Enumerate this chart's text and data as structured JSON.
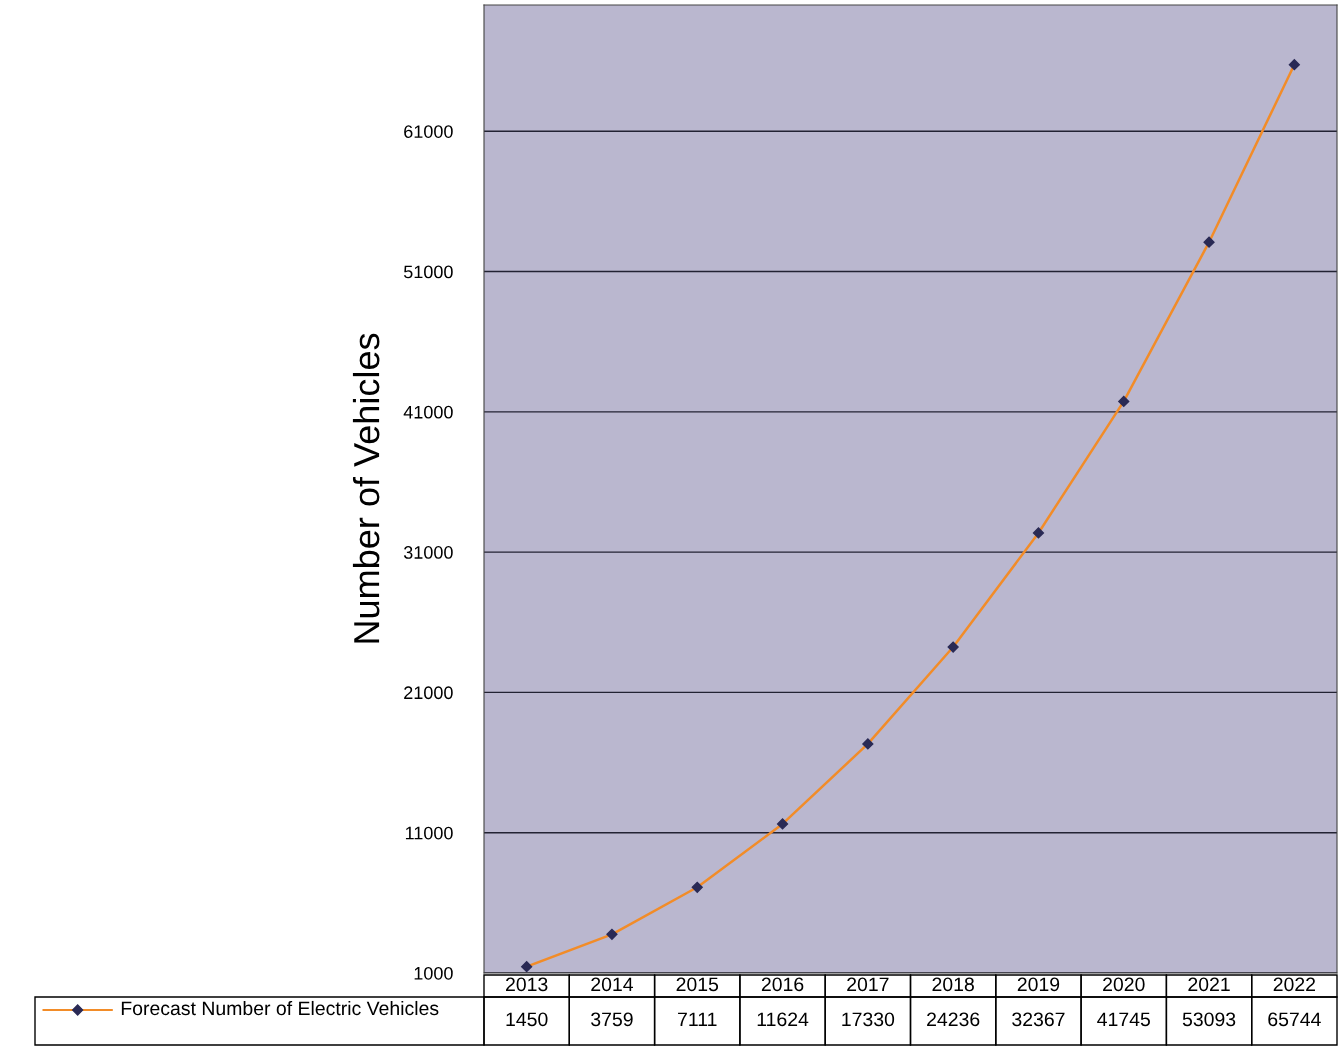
{
  "chart_data": {
    "type": "line",
    "ylabel": "Number of Vehicles",
    "categories": [
      "2013",
      "2014",
      "2015",
      "2016",
      "2017",
      "2018",
      "2019",
      "2020",
      "2021",
      "2022"
    ],
    "series": [
      {
        "name": "Forecast Number of Electric Vehicles",
        "color": "#f28c28",
        "values": [
          1450,
          3759,
          7111,
          11624,
          17330,
          24236,
          32367,
          41745,
          53093,
          65744
        ]
      }
    ],
    "ylim": [
      1000,
      70000
    ],
    "yticks": [
      1000,
      11000,
      21000,
      31000,
      41000,
      51000,
      61000
    ],
    "grid": "y",
    "marker": "diamond",
    "line_style": "solid",
    "legend": "bottom",
    "data_labels": true
  }
}
